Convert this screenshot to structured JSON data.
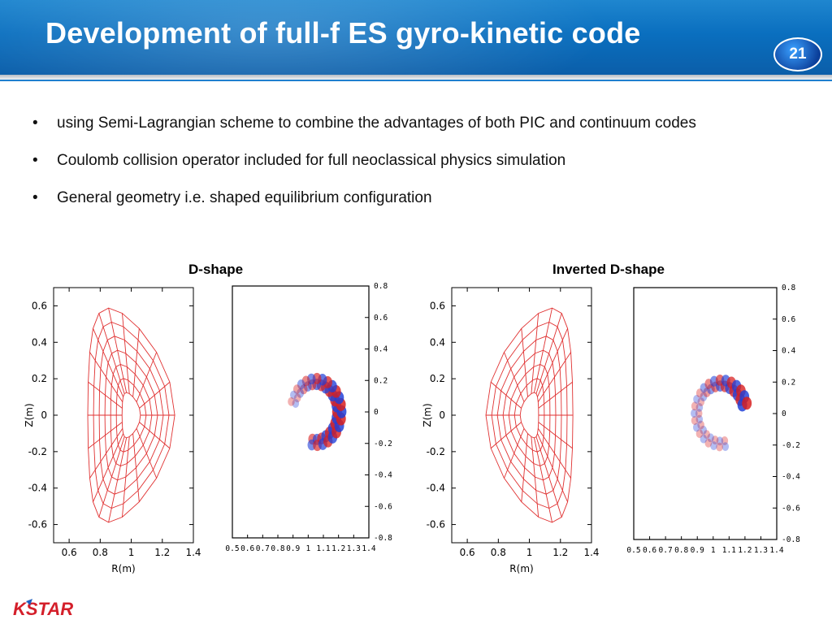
{
  "slide": {
    "title": "Development of full-f ES gyro-kinetic code",
    "page_number": "21",
    "logo_text": "KSTAR"
  },
  "bullets": [
    {
      "marker": "•",
      "text": "using Semi-Lagrangian scheme to combine the advantages of both PIC and continuum codes"
    },
    {
      "marker": "•",
      "text": "Coulomb collision operator included for full neoclassical physics simulation"
    },
    {
      "marker": "•",
      "text": "General geometry i.e. shaped equilibrium configuration"
    }
  ],
  "captions": {
    "left": "D-shape",
    "right": "Inverted D-shape"
  },
  "chart_data": [
    {
      "type": "mesh",
      "xlabel": "R(m)",
      "ylabel": "Z(m)",
      "xticks": [
        "0.6",
        "0.8",
        "1",
        "1.2",
        "1.4"
      ],
      "yticks": [
        "0.6",
        "0.4",
        "0.2",
        "0",
        "-0.2",
        "-0.4",
        "-0.6"
      ],
      "xlim": [
        0.5,
        1.4
      ],
      "ylim": [
        -0.7,
        0.7
      ]
    },
    {
      "type": "heatmap",
      "xticks": [
        "0.5",
        "0.6",
        "0.7",
        "0.8",
        "0.9",
        "1",
        "1.1",
        "1.2",
        "1.3",
        "1.4"
      ],
      "yticks": [
        "0.8",
        "0.6",
        "0.4",
        "0.2",
        "0",
        "-0.2",
        "-0.4",
        "-0.6",
        "-0.8"
      ]
    },
    {
      "type": "mesh",
      "xlabel": "R(m)",
      "ylabel": "Z(m)",
      "xticks": [
        "0.6",
        "0.8",
        "1",
        "1.2",
        "1.4"
      ],
      "yticks": [
        "0.6",
        "0.4",
        "0.2",
        "0",
        "-0.2",
        "-0.4",
        "-0.6"
      ],
      "xlim": [
        0.5,
        1.4
      ],
      "ylim": [
        -0.7,
        0.7
      ]
    },
    {
      "type": "heatmap",
      "xticks": [
        "0.5",
        "0.6",
        "0.7",
        "0.8",
        "0.9",
        "1",
        "1.1",
        "1.2",
        "1.3",
        "1.4"
      ],
      "yticks": [
        "0.8",
        "0.6",
        "0.4",
        "0.2",
        "0",
        "-0.2",
        "-0.4",
        "-0.6",
        "-0.8"
      ]
    }
  ]
}
